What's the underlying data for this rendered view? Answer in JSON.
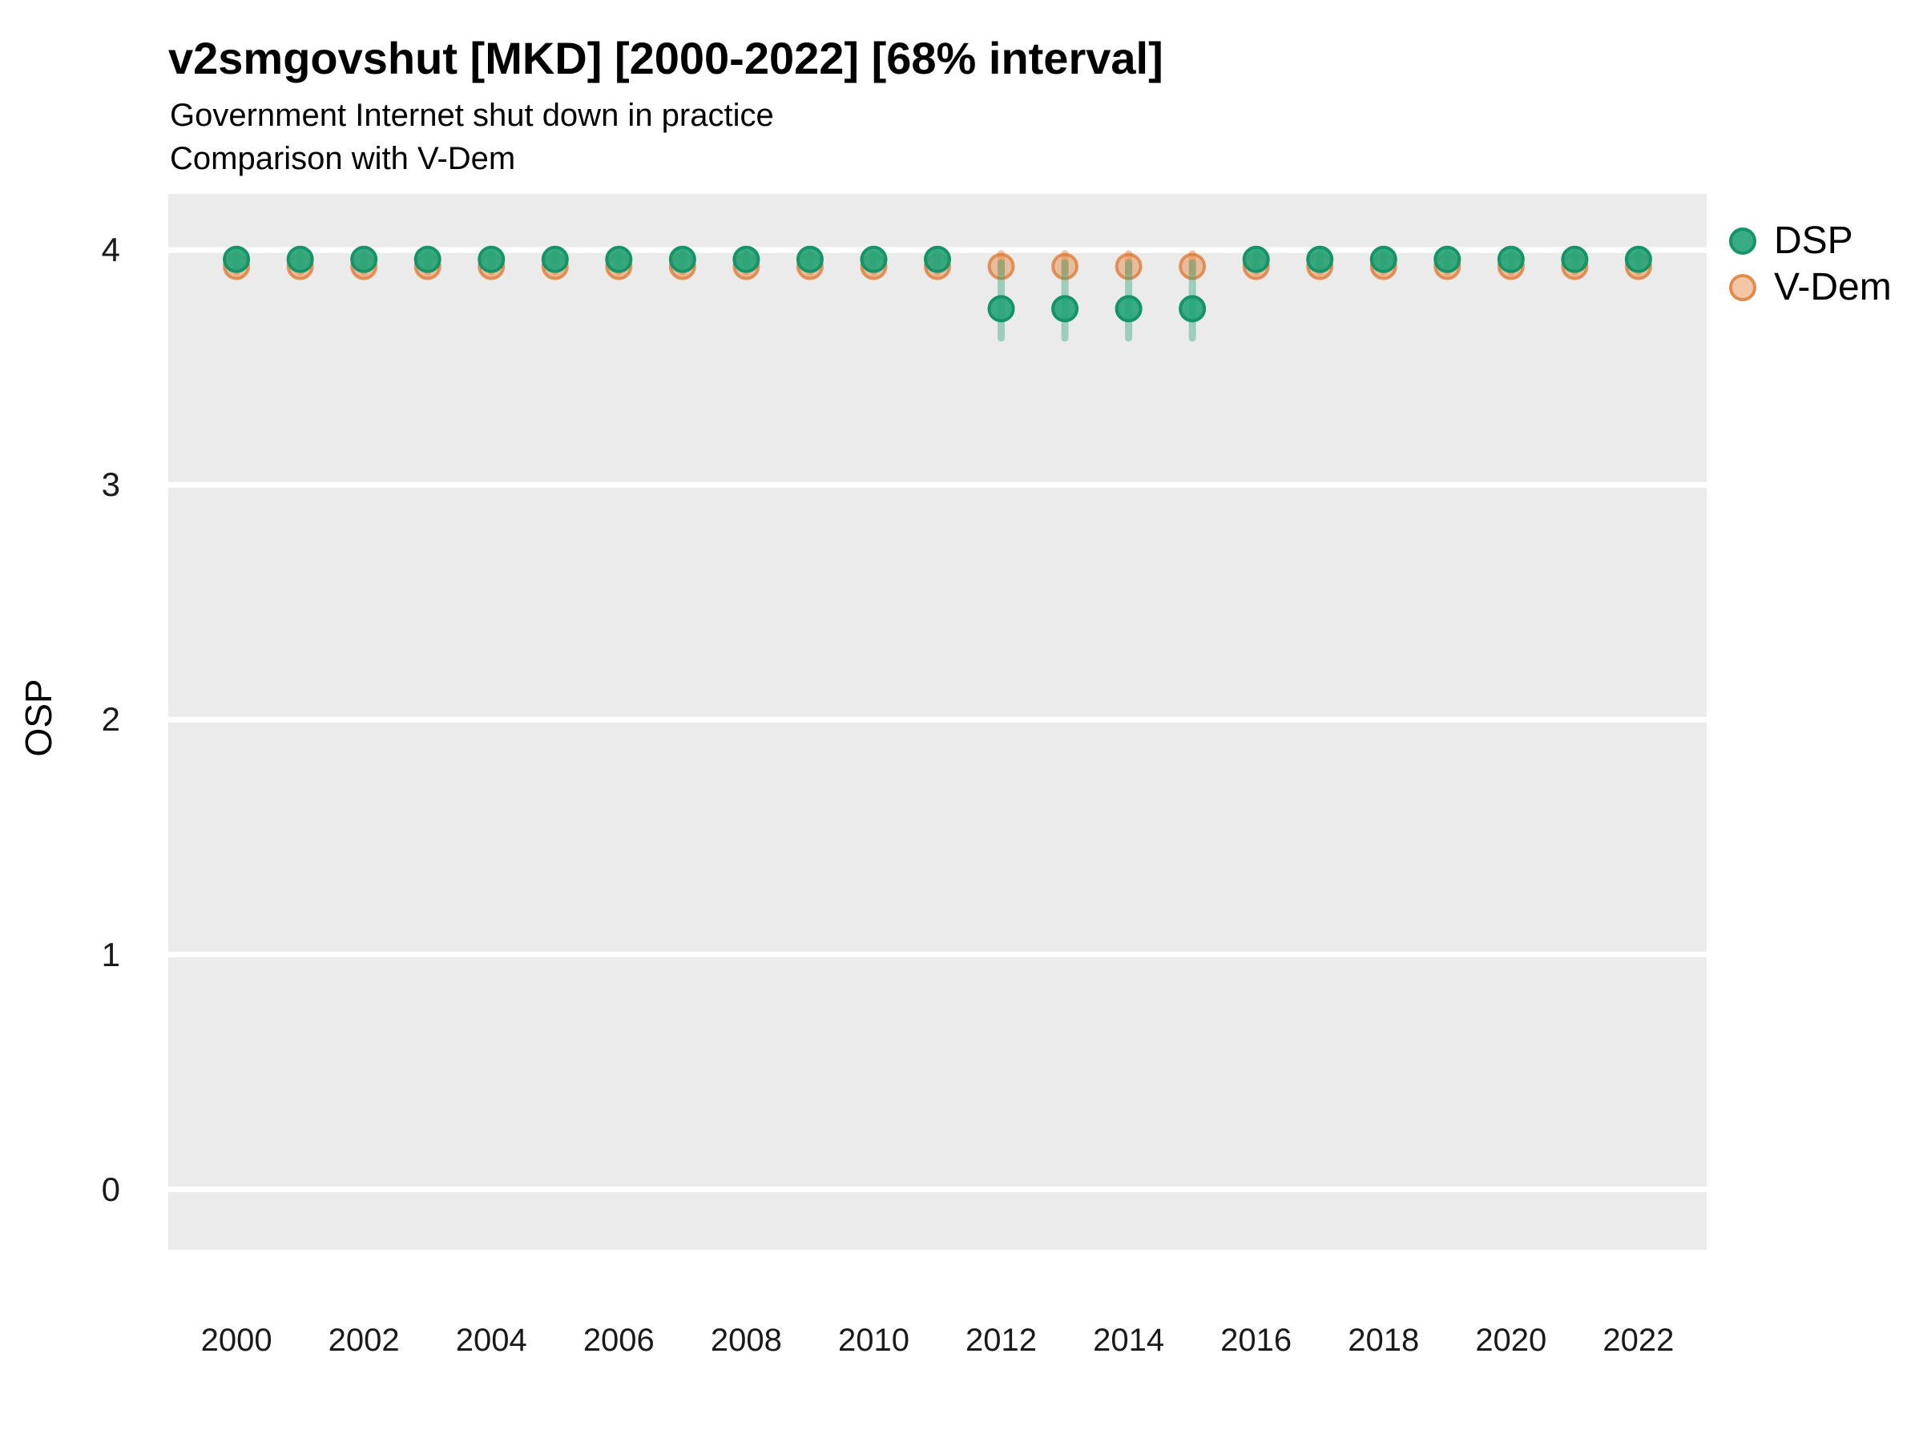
{
  "header": {
    "title": "v2smgovshut [MKD] [2000-2022] [68% interval]",
    "subtitle_line1": "Government Internet shut down in practice",
    "subtitle_line2": "Comparison with V-Dem"
  },
  "y_axis": {
    "label": "OSP"
  },
  "legend": {
    "position": "right-top",
    "items": [
      {
        "label": "DSP",
        "fill": "rgba(39,165,121,0.92)",
        "stroke": "#169467"
      },
      {
        "label": "V-Dem",
        "fill": "rgba(232,144,75,0.50)",
        "stroke": "rgba(219,117,45,0.72)"
      }
    ]
  },
  "chart_data": {
    "type": "scatter",
    "title": "v2smgovshut [MKD] [2000-2022] [68% interval]",
    "subtitle": "Government Internet shut down in practice / Comparison with V-Dem",
    "xlabel": "",
    "ylabel": "OSP",
    "x": [
      2000,
      2001,
      2002,
      2003,
      2004,
      2005,
      2006,
      2007,
      2008,
      2009,
      2010,
      2011,
      2012,
      2013,
      2014,
      2015,
      2016,
      2017,
      2018,
      2019,
      2020,
      2021,
      2022
    ],
    "xticks": [
      2000,
      2002,
      2004,
      2006,
      2008,
      2010,
      2012,
      2014,
      2016,
      2018,
      2020,
      2022
    ],
    "yticks": [
      0,
      1,
      2,
      3,
      4
    ],
    "xlim": [
      1998.93,
      2023.07
    ],
    "ylim": [
      -0.257,
      4.239
    ],
    "grid": "horizontal-major-white-on-gray",
    "interval_level": "68%",
    "series": [
      {
        "name": "V-Dem",
        "values": [
          3.93,
          3.93,
          3.93,
          3.93,
          3.93,
          3.93,
          3.93,
          3.93,
          3.93,
          3.93,
          3.93,
          3.93,
          3.93,
          3.93,
          3.93,
          3.93,
          3.93,
          3.93,
          3.93,
          3.93,
          3.93,
          3.93,
          3.93
        ],
        "lo": [
          3.89,
          3.89,
          3.89,
          3.89,
          3.89,
          3.89,
          3.89,
          3.89,
          3.89,
          3.89,
          3.89,
          3.89,
          3.89,
          3.89,
          3.89,
          3.89,
          3.89,
          3.89,
          3.89,
          3.89,
          3.89,
          3.89,
          3.89
        ],
        "hi": [
          4.0,
          4.0,
          4.0,
          4.0,
          4.0,
          4.0,
          4.0,
          4.0,
          4.0,
          4.0,
          4.0,
          4.0,
          4.0,
          4.0,
          4.0,
          4.0,
          4.0,
          4.0,
          4.0,
          4.0,
          4.0,
          4.0,
          4.0
        ],
        "marker_fill": "rgba(232,144,75,0.50)",
        "marker_stroke": "rgba(219,117,45,0.72)",
        "interval_color": "rgba(235,152,90,0.55)"
      },
      {
        "name": "DSP",
        "values": [
          3.96,
          3.96,
          3.96,
          3.96,
          3.96,
          3.96,
          3.96,
          3.96,
          3.96,
          3.96,
          3.96,
          3.96,
          3.75,
          3.75,
          3.75,
          3.75,
          3.96,
          3.96,
          3.96,
          3.96,
          3.96,
          3.96,
          3.96
        ],
        "lo": [
          3.92,
          3.92,
          3.92,
          3.92,
          3.92,
          3.92,
          3.92,
          3.92,
          3.92,
          3.92,
          3.92,
          3.92,
          3.61,
          3.61,
          3.61,
          3.61,
          3.92,
          3.92,
          3.92,
          3.92,
          3.92,
          3.92,
          3.92
        ],
        "hi": [
          4.0,
          4.0,
          4.0,
          4.0,
          4.0,
          4.0,
          4.0,
          4.0,
          4.0,
          4.0,
          4.0,
          4.0,
          3.96,
          3.96,
          3.96,
          3.96,
          4.0,
          4.0,
          4.0,
          4.0,
          4.0,
          4.0,
          4.0
        ],
        "marker_fill": "rgba(39,165,121,0.92)",
        "marker_stroke": "#169467",
        "interval_color": "rgba(39,160,118,0.40)"
      }
    ],
    "panel_bg": "#ebebeb",
    "grid_color": "#ffffff"
  }
}
